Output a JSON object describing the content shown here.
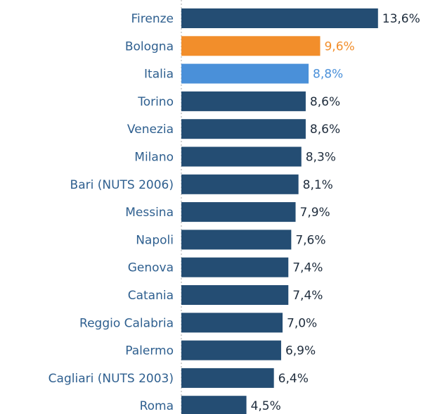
{
  "chart_data": {
    "type": "bar",
    "orientation": "horizontal",
    "categories": [
      "Firenze",
      "Bologna",
      "Italia",
      "Torino",
      "Venezia",
      "Milano",
      "Bari (NUTS 2006)",
      "Messina",
      "Napoli",
      "Genova",
      "Catania",
      "Reggio Calabria",
      "Palermo",
      "Cagliari (NUTS 2003)",
      "Roma"
    ],
    "values": [
      13.6,
      9.6,
      8.8,
      8.6,
      8.6,
      8.3,
      8.1,
      7.9,
      7.6,
      7.4,
      7.4,
      7.0,
      6.9,
      6.4,
      4.5
    ],
    "value_labels": [
      "13,6%",
      "9,6%",
      "8,8%",
      "8,6%",
      "8,6%",
      "8,3%",
      "8,1%",
      "7,9%",
      "7,6%",
      "7,4%",
      "7,4%",
      "7,0%",
      "6,9%",
      "6,4%",
      "4,5%"
    ],
    "colors": [
      "#244d73",
      "#f28e2b",
      "#4a90d9",
      "#244d73",
      "#244d73",
      "#244d73",
      "#244d73",
      "#244d73",
      "#244d73",
      "#244d73",
      "#244d73",
      "#244d73",
      "#244d73",
      "#244d73",
      "#244d73"
    ],
    "xlim": [
      0,
      14
    ]
  }
}
